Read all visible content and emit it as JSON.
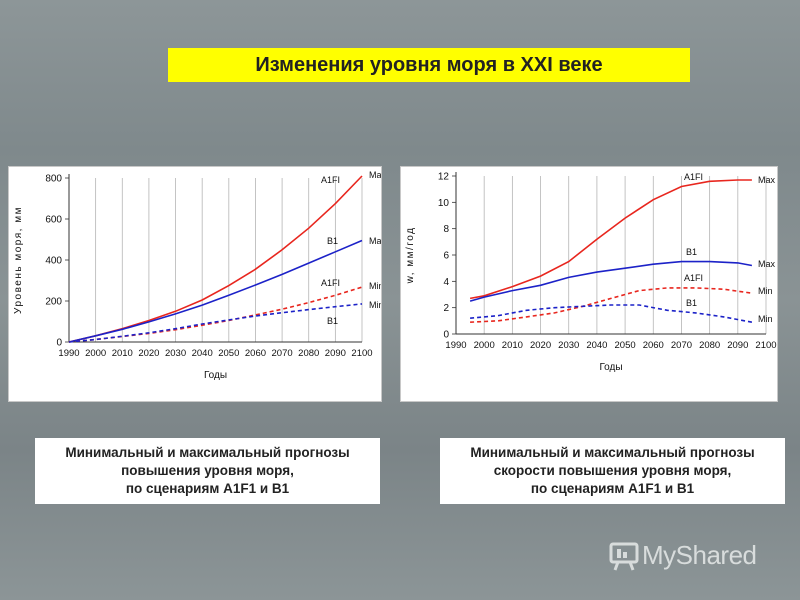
{
  "title": "Изменения уровня моря в XXI веке",
  "charts": [
    {
      "ylabel": "Уровень моря, мм",
      "xlabel": "Годы",
      "caption": [
        "Минимальный и максимальный прогнозы",
        "повышения уровня моря,",
        "по сценариям А1F1 и В1"
      ]
    },
    {
      "ylabel": "w, мм/год",
      "xlabel": "Годы",
      "caption": [
        "Минимальный и максимальный прогнозы",
        "скорости повышения уровня моря,",
        "по сценариям А1F1 и В1"
      ]
    }
  ],
  "chart_data": [
    {
      "type": "line",
      "title": "",
      "xlabel": "Годы",
      "ylabel": "Уровень моря, мм",
      "xlim": [
        1990,
        2100
      ],
      "ylim": [
        0,
        800
      ],
      "xticks": [
        1990,
        2000,
        2010,
        2020,
        2030,
        2040,
        2050,
        2060,
        2070,
        2080,
        2090,
        2100
      ],
      "yticks": [
        0,
        200,
        400,
        600,
        800
      ],
      "grid": "vertical",
      "series": [
        {
          "name": "A1FI",
          "tag": "Max",
          "color": "#e8261e",
          "dash": false,
          "x": [
            1990,
            2000,
            2010,
            2020,
            2030,
            2040,
            2050,
            2060,
            2070,
            2080,
            2090,
            2100
          ],
          "y": [
            0,
            30,
            65,
            105,
            150,
            205,
            275,
            355,
            450,
            555,
            675,
            810
          ]
        },
        {
          "name": "B1",
          "tag": "Max",
          "color": "#1c22c8",
          "dash": false,
          "x": [
            1990,
            2000,
            2010,
            2020,
            2030,
            2040,
            2050,
            2060,
            2070,
            2080,
            2090,
            2100
          ],
          "y": [
            0,
            30,
            62,
            98,
            137,
            180,
            228,
            278,
            330,
            385,
            440,
            495
          ]
        },
        {
          "name": "A1FI",
          "tag": "Min",
          "color": "#e8261e",
          "dash": true,
          "x": [
            1990,
            2000,
            2010,
            2020,
            2030,
            2040,
            2050,
            2060,
            2070,
            2080,
            2090,
            2100
          ],
          "y": [
            0,
            12,
            27,
            42,
            60,
            82,
            105,
            132,
            160,
            192,
            228,
            268
          ]
        },
        {
          "name": "B1",
          "tag": "Min",
          "color": "#1c22c8",
          "dash": true,
          "x": [
            1990,
            2000,
            2010,
            2020,
            2030,
            2040,
            2050,
            2060,
            2070,
            2080,
            2090,
            2100
          ],
          "y": [
            0,
            12,
            28,
            45,
            65,
            88,
            108,
            127,
            143,
            158,
            172,
            186
          ]
        }
      ]
    },
    {
      "type": "line",
      "title": "",
      "xlabel": "Годы",
      "ylabel": "w, мм/год",
      "xlim": [
        1990,
        2100
      ],
      "ylim": [
        0,
        12
      ],
      "xticks": [
        1990,
        2000,
        2010,
        2020,
        2030,
        2040,
        2050,
        2060,
        2070,
        2080,
        2090,
        2100
      ],
      "yticks": [
        0,
        2,
        4,
        6,
        8,
        10,
        12
      ],
      "grid": "vertical",
      "series": [
        {
          "name": "A1FI",
          "tag": "Max",
          "color": "#e8261e",
          "dash": false,
          "x": [
            1995,
            2000,
            2010,
            2020,
            2030,
            2040,
            2050,
            2060,
            2070,
            2080,
            2090,
            2095
          ],
          "y": [
            2.7,
            2.9,
            3.6,
            4.4,
            5.5,
            7.2,
            8.8,
            10.2,
            11.2,
            11.6,
            11.7,
            11.7
          ]
        },
        {
          "name": "B1",
          "tag": "Max",
          "color": "#1c22c8",
          "dash": false,
          "x": [
            1995,
            2000,
            2010,
            2020,
            2030,
            2040,
            2050,
            2060,
            2070,
            2080,
            2090,
            2095
          ],
          "y": [
            2.5,
            2.8,
            3.3,
            3.7,
            4.3,
            4.7,
            5.0,
            5.3,
            5.5,
            5.5,
            5.4,
            5.2
          ]
        },
        {
          "name": "A1FI",
          "tag": "Min",
          "color": "#e8261e",
          "dash": true,
          "x": [
            1995,
            2005,
            2015,
            2025,
            2035,
            2045,
            2055,
            2065,
            2075,
            2085,
            2095
          ],
          "y": [
            0.9,
            1.0,
            1.3,
            1.6,
            2.1,
            2.7,
            3.3,
            3.5,
            3.5,
            3.4,
            3.1
          ]
        },
        {
          "name": "B1",
          "tag": "Min",
          "color": "#1c22c8",
          "dash": true,
          "x": [
            1995,
            2005,
            2015,
            2025,
            2035,
            2045,
            2055,
            2065,
            2075,
            2085,
            2095
          ],
          "y": [
            1.2,
            1.4,
            1.8,
            2.0,
            2.1,
            2.2,
            2.2,
            1.8,
            1.6,
            1.3,
            0.9
          ]
        }
      ]
    }
  ],
  "watermark": {
    "text": "MyShared",
    "icon": "presentation-board-icon"
  }
}
